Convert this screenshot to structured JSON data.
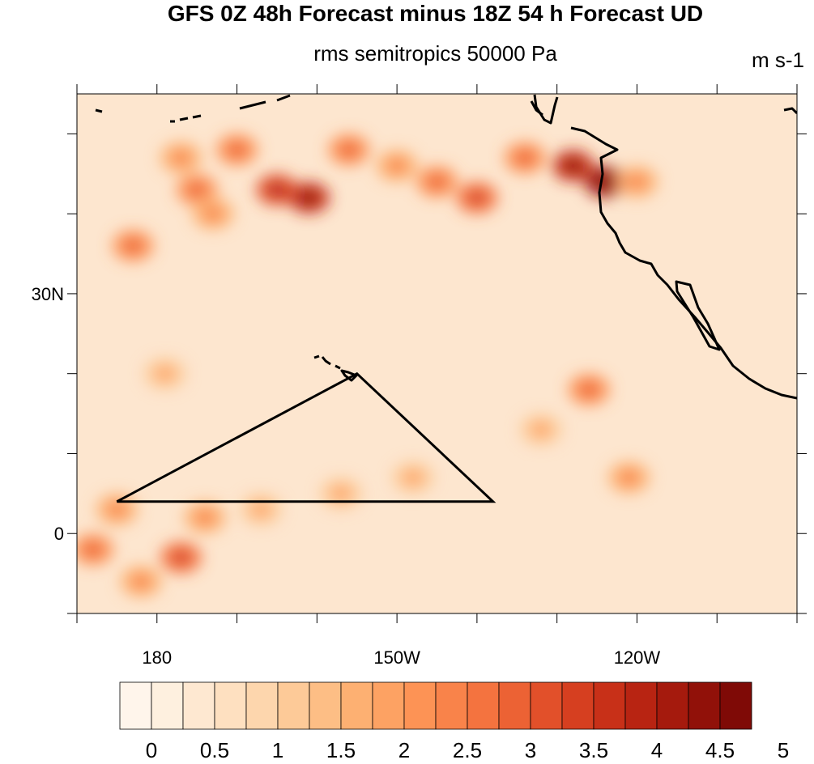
{
  "title": "GFS 0Z 48h Forecast minus 18Z 54 h Forecast UD",
  "subtitle": "rms semitropics 50000 Pa",
  "units": "m s-1",
  "axes": {
    "lat_labels": [
      {
        "lat": 30,
        "text": "30N"
      },
      {
        "lat": 0,
        "text": "0"
      }
    ],
    "lon_labels": [
      {
        "lon": 180,
        "text": "180"
      },
      {
        "lon": 210,
        "text": "150W"
      },
      {
        "lon": 240,
        "text": "120W"
      }
    ],
    "lon_range": [
      170,
      260
    ],
    "lat_range": [
      -10,
      55
    ]
  },
  "colorbar": {
    "labels": [
      "0",
      "0.5",
      "1",
      "1.5",
      "2",
      "2.5",
      "3",
      "3.5",
      "4",
      "4.5",
      "5"
    ],
    "colors": [
      "#fff5eb",
      "#fef0df",
      "#fee8d1",
      "#fee0c0",
      "#fdd6ad",
      "#fdca98",
      "#fdbe85",
      "#fdb072",
      "#fda263",
      "#fd9355",
      "#f9834a",
      "#f4733f",
      "#ec6234",
      "#e2502a",
      "#d63f20",
      "#c83018",
      "#b82412",
      "#a51a0d",
      "#911109",
      "#7f0a06"
    ]
  },
  "field": {
    "background": "#fde6cf",
    "hotspots": [
      {
        "lon": 183,
        "lat": 47,
        "value": 2.5
      },
      {
        "lon": 185,
        "lat": 43,
        "value": 3.0
      },
      {
        "lon": 187,
        "lat": 40,
        "value": 2.5
      },
      {
        "lon": 177,
        "lat": 36,
        "value": 3.0
      },
      {
        "lon": 190,
        "lat": 48,
        "value": 3.0
      },
      {
        "lon": 195,
        "lat": 43,
        "value": 4.0
      },
      {
        "lon": 199,
        "lat": 42,
        "value": 4.5
      },
      {
        "lon": 204,
        "lat": 48,
        "value": 3.0
      },
      {
        "lon": 210,
        "lat": 46,
        "value": 2.5
      },
      {
        "lon": 215,
        "lat": 44,
        "value": 3.0
      },
      {
        "lon": 220,
        "lat": 42,
        "value": 3.5
      },
      {
        "lon": 226,
        "lat": 47,
        "value": 3.0
      },
      {
        "lon": 232,
        "lat": 46,
        "value": 4.5
      },
      {
        "lon": 236,
        "lat": 44,
        "value": 5.0
      },
      {
        "lon": 240,
        "lat": 44,
        "value": 2.5
      },
      {
        "lon": 181,
        "lat": 20,
        "value": 2.0
      },
      {
        "lon": 234,
        "lat": 18,
        "value": 3.0
      },
      {
        "lon": 228,
        "lat": 13,
        "value": 2.0
      },
      {
        "lon": 239,
        "lat": 7,
        "value": 2.5
      },
      {
        "lon": 175,
        "lat": 3,
        "value": 2.5
      },
      {
        "lon": 172,
        "lat": -2,
        "value": 3.0
      },
      {
        "lon": 183,
        "lat": -3,
        "value": 3.5
      },
      {
        "lon": 186,
        "lat": 2,
        "value": 2.5
      },
      {
        "lon": 193,
        "lat": 3,
        "value": 2.0
      },
      {
        "lon": 203,
        "lat": 5,
        "value": 2.0
      },
      {
        "lon": 212,
        "lat": 7,
        "value": 2.0
      },
      {
        "lon": 178,
        "lat": -6,
        "value": 2.5
      }
    ]
  },
  "overlay_triangle": {
    "points_lonlat": [
      [
        205,
        20
      ],
      [
        222,
        4
      ],
      [
        175,
        4
      ]
    ]
  }
}
